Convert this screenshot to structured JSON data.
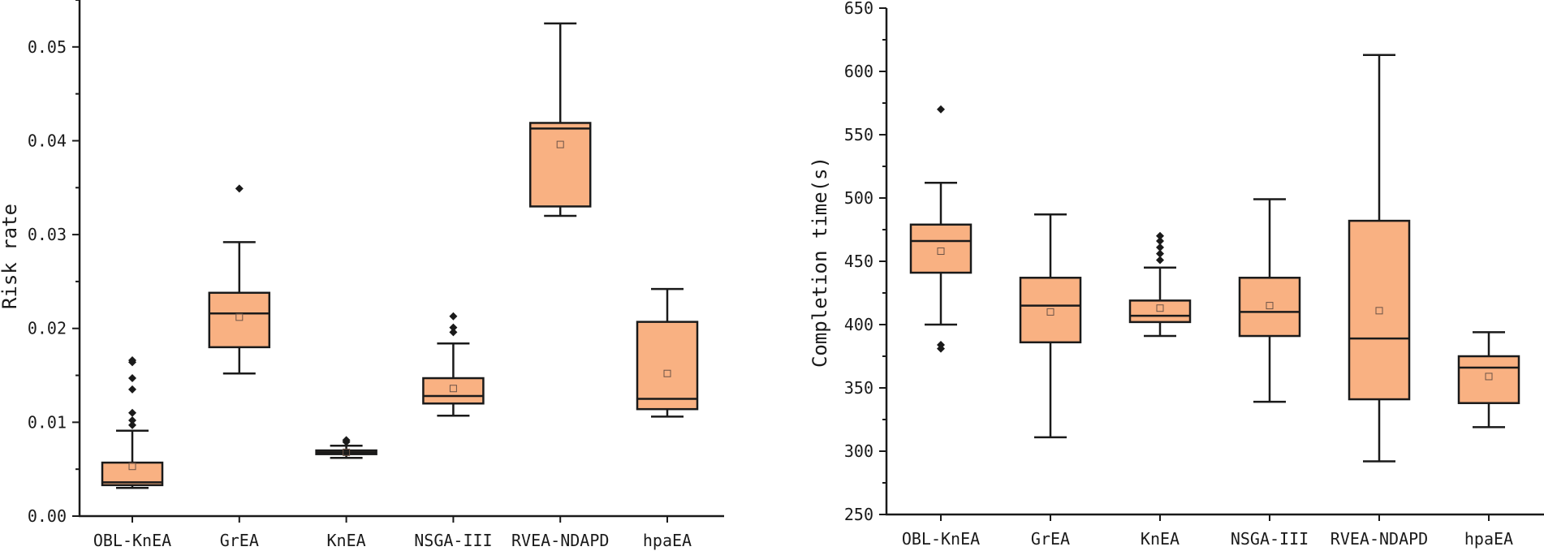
{
  "chart_data": [
    {
      "type": "boxplot",
      "ylabel": "Risk rate",
      "xlabel": "",
      "ylim": [
        0.0,
        0.055
      ],
      "yticks": [
        0.0,
        0.01,
        0.02,
        0.03,
        0.04,
        0.05
      ],
      "ytick_labels": [
        "0.00",
        "0.01",
        "0.02",
        "0.03",
        "0.04",
        "0.05"
      ],
      "categories": [
        "OBL-KnEA",
        "GrEA",
        "KnEA",
        "NSGA-III",
        "RVEA-NDAPD",
        "hpaEA"
      ],
      "box_color": "#F9B182",
      "edge_color": "#1a1a1a",
      "boxes": [
        {
          "name": "OBL-KnEA",
          "whisker_low": 0.003,
          "q1": 0.0033,
          "median": 0.0036,
          "q3": 0.0057,
          "whisker_high": 0.0091,
          "mean": 0.0053,
          "outliers": [
            0.0097,
            0.0102,
            0.011,
            0.0135,
            0.0147,
            0.0164,
            0.0166
          ]
        },
        {
          "name": "GrEA",
          "whisker_low": 0.0152,
          "q1": 0.018,
          "median": 0.0216,
          "q3": 0.0238,
          "whisker_high": 0.0292,
          "mean": 0.0212,
          "outliers": [
            0.0349
          ]
        },
        {
          "name": "KnEA",
          "whisker_low": 0.0062,
          "q1": 0.0066,
          "median": 0.0068,
          "q3": 0.007,
          "whisker_high": 0.0075,
          "mean": 0.0068,
          "outliers": [
            0.0079,
            0.0081
          ]
        },
        {
          "name": "NSGA-III",
          "whisker_low": 0.0107,
          "q1": 0.012,
          "median": 0.0128,
          "q3": 0.0147,
          "whisker_high": 0.0184,
          "mean": 0.0136,
          "outliers": [
            0.0196,
            0.0201,
            0.0213
          ]
        },
        {
          "name": "RVEA-NDAPD",
          "whisker_low": 0.032,
          "q1": 0.033,
          "median": 0.0413,
          "q3": 0.0419,
          "whisker_high": 0.0525,
          "mean": 0.0396,
          "outliers": []
        },
        {
          "name": "hpaEA",
          "whisker_low": 0.0106,
          "q1": 0.0114,
          "median": 0.0125,
          "q3": 0.0207,
          "whisker_high": 0.0242,
          "mean": 0.0152,
          "outliers": []
        }
      ]
    },
    {
      "type": "boxplot",
      "ylabel": "Completion time(s)",
      "xlabel": "",
      "ylim": [
        250,
        650
      ],
      "yticks": [
        250,
        300,
        350,
        400,
        450,
        500,
        550,
        600,
        650
      ],
      "ytick_labels": [
        "250",
        "300",
        "350",
        "400",
        "450",
        "500",
        "550",
        "600",
        "650"
      ],
      "categories": [
        "OBL-KnEA",
        "GrEA",
        "KnEA",
        "NSGA-III",
        "RVEA-NDAPD",
        "hpaEA"
      ],
      "box_color": "#F9B182",
      "edge_color": "#1a1a1a",
      "boxes": [
        {
          "name": "OBL-KnEA",
          "whisker_low": 400,
          "q1": 441,
          "median": 466,
          "q3": 479,
          "whisker_high": 512,
          "mean": 458,
          "outliers": [
            381,
            384,
            570
          ]
        },
        {
          "name": "GrEA",
          "whisker_low": 311,
          "q1": 386,
          "median": 415,
          "q3": 437,
          "whisker_high": 487,
          "mean": 410,
          "outliers": []
        },
        {
          "name": "KnEA",
          "whisker_low": 391,
          "q1": 402,
          "median": 407,
          "q3": 419,
          "whisker_high": 445,
          "mean": 413,
          "outliers": [
            451,
            456,
            461,
            466,
            470
          ]
        },
        {
          "name": "NSGA-III",
          "whisker_low": 339,
          "q1": 391,
          "median": 410,
          "q3": 437,
          "whisker_high": 499,
          "mean": 415,
          "outliers": []
        },
        {
          "name": "RVEA-NDAPD",
          "whisker_low": 292,
          "q1": 341,
          "median": 389,
          "q3": 482,
          "whisker_high": 613,
          "mean": 411,
          "outliers": []
        },
        {
          "name": "hpaEA",
          "whisker_low": 319,
          "q1": 338,
          "median": 366,
          "q3": 375,
          "whisker_high": 394,
          "mean": 359,
          "outliers": []
        }
      ]
    }
  ]
}
